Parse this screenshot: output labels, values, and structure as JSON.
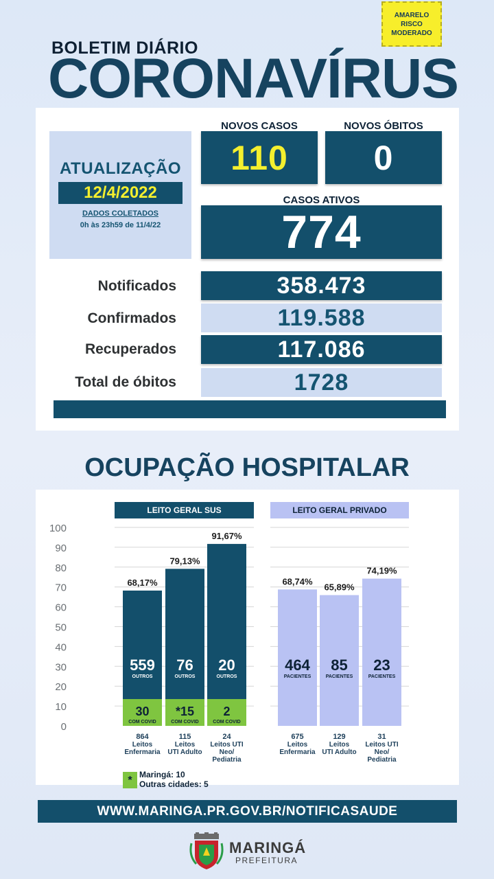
{
  "risk": {
    "line1": "AMARELO",
    "line2": "RISCO",
    "line3": "MODERADO",
    "color": "#f7ee2b"
  },
  "header": {
    "subtitle": "BOLETIM DIÁRIO",
    "title": "CORONAVÍRUS"
  },
  "update": {
    "title": "ATUALIZAÇÃO",
    "date": "12/4/2022",
    "dados_label": "DADOS COLETADOS",
    "range": "0h às 23h59 de 11/4/22"
  },
  "kpis": {
    "novos_casos_label": "NOVOS CASOS",
    "novos_casos": "110",
    "novos_obitos_label": "NOVOS ÓBITOS",
    "novos_obitos": "0",
    "casos_ativos_label": "CASOS ATIVOS",
    "casos_ativos": "774"
  },
  "stats": [
    {
      "label": "Notificados",
      "value": "358.473",
      "style": "dark"
    },
    {
      "label": "Confirmados",
      "value": "119.588",
      "style": "light"
    },
    {
      "label": "Recuperados",
      "value": "117.086",
      "style": "dark"
    },
    {
      "label": "Total de óbitos",
      "value": "1728",
      "style": "light"
    }
  ],
  "section_title": "OCUPAÇÃO HOSPITALAR",
  "chart_data": {
    "type": "bar",
    "ylim": [
      0,
      100
    ],
    "yticks": [
      "0",
      "10",
      "20",
      "30",
      "40",
      "50",
      "60",
      "70",
      "80",
      "90",
      "100"
    ],
    "grid": true,
    "groups": [
      {
        "name": "LEITO GERAL SUS",
        "color": "#134f6b",
        "covid_color": "#7fc540",
        "bars": [
          {
            "pct": 68.17,
            "pct_label": "68,17%",
            "other": "559",
            "other_label": "OUTROS",
            "covid": "30",
            "covid_label": "COM COVID",
            "covid_pct": 13.5,
            "beds": "864",
            "cat1": "Leitos",
            "cat2": "Enfermaria",
            "cat3": ""
          },
          {
            "pct": 79.13,
            "pct_label": "79,13%",
            "other": "76",
            "other_label": "OUTROS",
            "covid": "*15",
            "covid_label": "COM COVID",
            "covid_pct": 13.5,
            "beds": "115",
            "cat1": "Leitos",
            "cat2": "UTI Adulto",
            "cat3": ""
          },
          {
            "pct": 91.67,
            "pct_label": "91,67%",
            "other": "20",
            "other_label": "OUTROS",
            "covid": "2",
            "covid_label": "COM COVID",
            "covid_pct": 13.5,
            "beds": "24",
            "cat1": "Leitos UTI",
            "cat2": "Neo/",
            "cat3": "Pediatria"
          }
        ]
      },
      {
        "name": "LEITO GERAL PRIVADO",
        "color": "#b9c2f3",
        "bars": [
          {
            "pct": 68.74,
            "pct_label": "68,74%",
            "other": "464",
            "other_label": "PACIENTES",
            "beds": "675",
            "cat1": "Leitos",
            "cat2": "Enfermaria",
            "cat3": ""
          },
          {
            "pct": 65.89,
            "pct_label": "65,89%",
            "other": "85",
            "other_label": "PACIENTES",
            "beds": "129",
            "cat1": "Leitos",
            "cat2": "UTI Adulto",
            "cat3": ""
          },
          {
            "pct": 74.19,
            "pct_label": "74,19%",
            "other": "23",
            "other_label": "PACIENTES",
            "beds": "31",
            "cat1": "Leitos UTI",
            "cat2": "Neo/",
            "cat3": "Pediatria"
          }
        ]
      }
    ]
  },
  "legend": {
    "symbol": "*",
    "line1": "Maringá: 10",
    "line2": "Outras cidades: 5"
  },
  "footer": {
    "url": "WWW.MARINGA.PR.GOV.BR/NOTIFICASAUDE"
  },
  "logo": {
    "name": "MARINGÁ",
    "sub": "PREFEITURA"
  }
}
